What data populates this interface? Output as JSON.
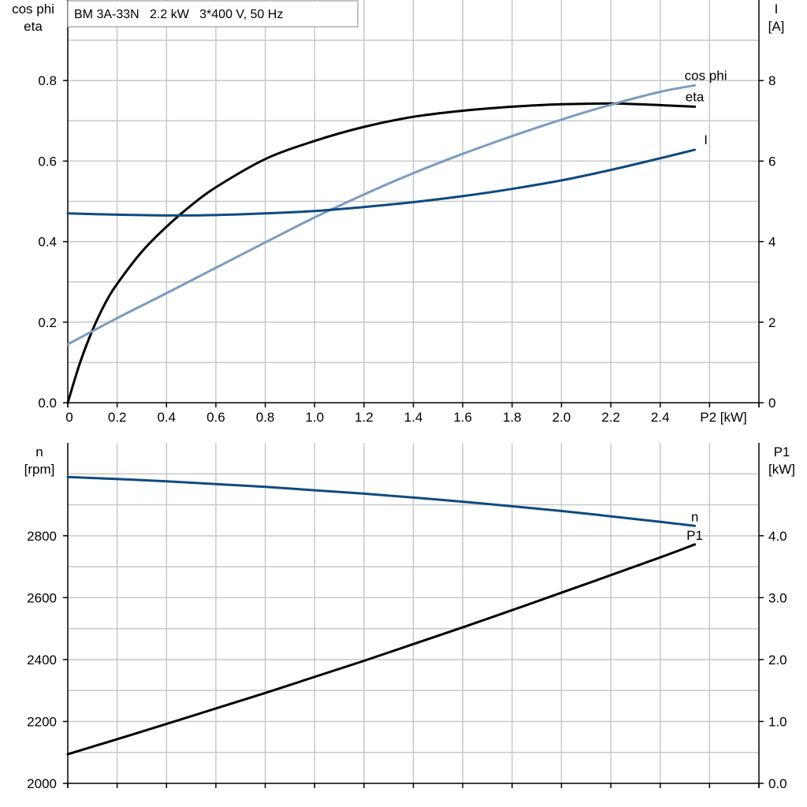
{
  "title": "BM 3A-33N   2.2 kW   3*400 V, 50 Hz",
  "colors": {
    "eta": "#000000",
    "cos_phi": "#7a9cc0",
    "I": "#0e4a80",
    "n": "#0e4a80",
    "P1": "#000000",
    "grid": "#c8c8c8"
  },
  "chart_data": [
    {
      "type": "line",
      "x_axis": {
        "label": "P2 [kW]",
        "range": [
          0,
          2.8
        ],
        "ticks": [
          "0",
          "0.2",
          "0.4",
          "0.6",
          "0.8",
          "1.0",
          "1.2",
          "1.4",
          "1.6",
          "1.8",
          "2.0",
          "2.2",
          "2.4"
        ],
        "tick_values": [
          0,
          0.2,
          0.4,
          0.6,
          0.8,
          1.0,
          1.2,
          1.4,
          1.6,
          1.8,
          2.0,
          2.2,
          2.4
        ]
      },
      "y_left": {
        "label_lines": [
          "cos phi",
          "eta"
        ],
        "range": [
          0,
          1.0
        ],
        "ticks": [
          "0.0",
          "0.2",
          "0.4",
          "0.6",
          "0.8"
        ],
        "tick_values": [
          0,
          0.2,
          0.4,
          0.6,
          0.8
        ]
      },
      "y_right": {
        "label_lines": [
          "I",
          "[A]"
        ],
        "range": [
          0,
          10
        ],
        "ticks": [
          "0",
          "2",
          "4",
          "6",
          "8"
        ],
        "tick_values": [
          0,
          2,
          4,
          6,
          8
        ]
      },
      "grid": true,
      "series": [
        {
          "name": "eta",
          "axis": "left",
          "color_key": "eta",
          "x": [
            0,
            0.05,
            0.1,
            0.15,
            0.2,
            0.3,
            0.4,
            0.5,
            0.6,
            0.8,
            1.0,
            1.2,
            1.4,
            1.6,
            1.8,
            2.0,
            2.2,
            2.4,
            2.54
          ],
          "y": [
            0,
            0.1,
            0.18,
            0.245,
            0.295,
            0.375,
            0.437,
            0.49,
            0.535,
            0.605,
            0.65,
            0.685,
            0.71,
            0.725,
            0.735,
            0.741,
            0.743,
            0.739,
            0.735
          ]
        },
        {
          "name": "cos phi",
          "axis": "left",
          "color_key": "cos_phi",
          "x": [
            0,
            0.2,
            0.4,
            0.6,
            0.8,
            1.0,
            1.2,
            1.4,
            1.6,
            1.8,
            2.0,
            2.2,
            2.4,
            2.54
          ],
          "y": [
            0.145,
            0.21,
            0.272,
            0.335,
            0.398,
            0.46,
            0.517,
            0.57,
            0.618,
            0.662,
            0.703,
            0.74,
            0.772,
            0.788
          ]
        },
        {
          "name": "I",
          "axis": "right",
          "color_key": "I",
          "x": [
            0,
            0.2,
            0.4,
            0.6,
            0.8,
            1.0,
            1.2,
            1.4,
            1.6,
            1.8,
            2.0,
            2.2,
            2.4,
            2.54
          ],
          "y": [
            4.7,
            4.67,
            4.65,
            4.66,
            4.7,
            4.76,
            4.86,
            4.98,
            5.13,
            5.31,
            5.52,
            5.78,
            6.07,
            6.28
          ]
        }
      ]
    },
    {
      "type": "line",
      "x_axis": {
        "range": [
          0,
          2.8
        ]
      },
      "y_left": {
        "label_lines": [
          "n",
          "[rpm]"
        ],
        "range": [
          2000,
          3100
        ],
        "ticks": [
          "2000",
          "2200",
          "2400",
          "2600",
          "2800"
        ],
        "tick_values": [
          2000,
          2200,
          2400,
          2600,
          2800
        ]
      },
      "y_right": {
        "label_lines": [
          "P1",
          "[kW]"
        ],
        "range": [
          0,
          5.5
        ],
        "ticks": [
          "0.0",
          "1.0",
          "2.0",
          "3.0",
          "4.0"
        ],
        "tick_values": [
          0,
          1,
          2,
          3,
          4
        ]
      },
      "grid": true,
      "series": [
        {
          "name": "n",
          "axis": "left",
          "color_key": "n",
          "x": [
            0,
            0.4,
            0.8,
            1.2,
            1.6,
            2.0,
            2.4,
            2.54
          ],
          "y": [
            2990,
            2976,
            2958,
            2936,
            2910,
            2880,
            2845,
            2832
          ]
        },
        {
          "name": "P1",
          "axis": "right",
          "color_key": "P1",
          "x": [
            0,
            0.4,
            0.8,
            1.2,
            1.6,
            2.0,
            2.4,
            2.54
          ],
          "y": [
            0.47,
            0.96,
            1.46,
            1.98,
            2.52,
            3.08,
            3.65,
            3.86
          ]
        }
      ]
    }
  ]
}
